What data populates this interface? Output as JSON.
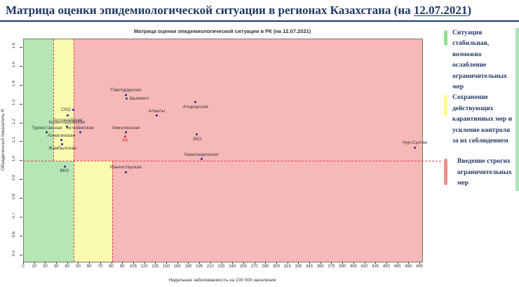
{
  "header": {
    "title_prefix": "Матрица оценки эпидемиологической ситуации в регионах Казахстана (на ",
    "title_date": "12.07.2021",
    "title_suffix": ")"
  },
  "chart_data": {
    "type": "scatter",
    "title": "Матрица оценки эпидемиологической ситуации в РК (на 12.07.2021)",
    "xlabel": "Недельная заболеваемость на 100 000 населения",
    "ylabel": "Объединенный показатель R",
    "x_ticks": [
      "0",
      "10",
      "20",
      "30",
      "40",
      "50",
      "60",
      "70",
      "80",
      "90",
      "105",
      "120",
      "135",
      "150",
      "165",
      "180",
      "195",
      "210",
      "225",
      "240",
      "255",
      "270",
      "285",
      "300",
      "315",
      "330",
      "345",
      "360",
      "375",
      "390",
      "405",
      "420",
      "435",
      "450",
      "465",
      "480",
      "495"
    ],
    "y_ticks": [
      "1.6",
      "1.5",
      "1.4",
      "1.3",
      "1.2",
      "1.1",
      "1.0",
      "0.9",
      "0.8",
      "0.7",
      "0.6",
      "0.5"
    ],
    "ylim": [
      0.46,
      1.65
    ],
    "grid": false,
    "legend_position": "right",
    "r_threshold_line": 1.0,
    "colors": {
      "green": "#b4e7b4",
      "yellow": "#fbfbb0",
      "red": "#f7b8b8",
      "dashed": "#e04040",
      "point": "#2a2aa0",
      "point_rk": "#e02020",
      "label": "#3a3a3a",
      "label_rk": "#e02020"
    },
    "zones": {
      "upper": [
        {
          "to": 27,
          "color": "green"
        },
        {
          "from": 27,
          "to": 45,
          "color": "yellow"
        },
        {
          "from": 45,
          "color": "red"
        }
      ],
      "lower": [
        {
          "to": 45,
          "color": "green"
        },
        {
          "from": 45,
          "to": 80,
          "color": "yellow"
        },
        {
          "from": 80,
          "color": "red"
        }
      ]
    },
    "points": [
      {
        "name": "Туркестанская",
        "x": 21,
        "r": 1.15,
        "label_pos": "above"
      },
      {
        "name": "Алматинская",
        "x": 34,
        "r": 1.11,
        "label_pos": "above"
      },
      {
        "name": "Жамбылская",
        "x": 35,
        "r": 1.09,
        "label_pos": "below"
      },
      {
        "name": "ВКО",
        "x": 37,
        "r": 0.97,
        "label_pos": "below"
      },
      {
        "name": "Кызылординская",
        "x": 39,
        "r": 1.18,
        "label_pos": "above"
      },
      {
        "name": "Костанайская",
        "x": 40,
        "r": 1.24,
        "label_pos": "below"
      },
      {
        "name": "СКО",
        "x": 45,
        "r": 1.27,
        "label_pos": "left"
      },
      {
        "name": "Актюбинская",
        "x": 51,
        "r": 1.15,
        "label_pos": "above"
      },
      {
        "name": "РК",
        "x": 93,
        "r": 1.13,
        "label_pos": "below",
        "rk": true
      },
      {
        "name": "Акмолинская",
        "x": 94,
        "r": 1.15,
        "label_pos": "above"
      },
      {
        "name": "Павлодарская",
        "x": 94,
        "r": 1.35,
        "label_pos": "above"
      },
      {
        "name": "Шымкент",
        "x": 95,
        "r": 1.33,
        "label_pos": "right"
      },
      {
        "name": "Мангистауская",
        "x": 94,
        "r": 0.94,
        "label_pos": "above"
      },
      {
        "name": "Алматы",
        "x": 136,
        "r": 1.24,
        "label_pos": "above"
      },
      {
        "name": "Атырауская",
        "x": 189,
        "r": 1.31,
        "label_pos": "below"
      },
      {
        "name": "ЗКО",
        "x": 191,
        "r": 1.14,
        "label_pos": "below"
      },
      {
        "name": "Карагандинская",
        "x": 197,
        "r": 1.01,
        "label_pos": "above"
      },
      {
        "name": "Нур-Султан",
        "x": 488,
        "r": 1.07,
        "label_pos": "above"
      }
    ]
  },
  "legend": {
    "items": [
      {
        "color": "#8fe08f",
        "lines": [
          "Ситуация",
          "стабильная,",
          "возможно ослабление",
          "ограничительных",
          "мер"
        ]
      },
      {
        "color": "#fafa86",
        "lines": [
          "Сохранение",
          "действующих",
          "карантинных мер и",
          "усиление контроля",
          "за их соблюдением"
        ]
      },
      {
        "color": "#ee8f8f",
        "lines": [
          "Введение строгих",
          "ограничительных",
          "мер"
        ]
      }
    ]
  }
}
